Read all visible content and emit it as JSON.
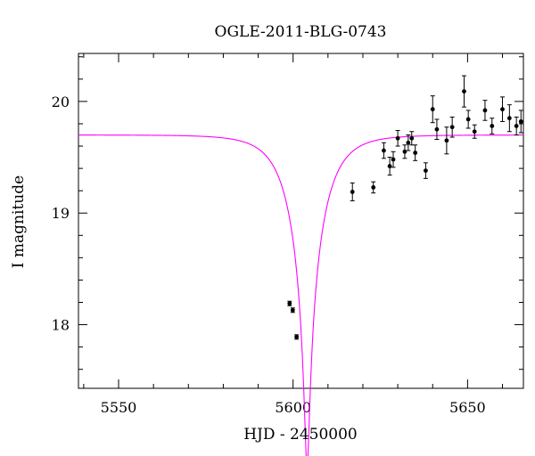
{
  "chart_data": {
    "type": "scatter",
    "title": "OGLE-2011-BLG-0743",
    "xlabel": "HJD - 2450000",
    "ylabel": "I magnitude",
    "xlim": [
      5538.5,
      5666
    ],
    "ylim": [
      20.43,
      17.43
    ],
    "y_inverted": true,
    "grid": false,
    "x_ticks": [
      5550,
      5600,
      5650
    ],
    "y_ticks": [
      18,
      19,
      20
    ],
    "x_minor_step": 10,
    "y_minor_step": 0.2,
    "colors": {
      "points": "#000000",
      "model": "#ff00ff"
    },
    "model": {
      "type": "paczynski",
      "t0": 5604.0,
      "tE": 9.0,
      "u0": 0.065,
      "baseline_mag": 19.7,
      "x_range": [
        5538.5,
        5666
      ]
    },
    "series": [
      {
        "points": [
          {
            "x": 5599.0,
            "y": 18.19,
            "err": 0.02
          },
          {
            "x": 5599.9,
            "y": 18.13,
            "err": 0.02
          },
          {
            "x": 5601.0,
            "y": 17.89,
            "err": 0.02
          },
          {
            "x": 5617.0,
            "y": 19.19,
            "err": 0.08
          },
          {
            "x": 5623.0,
            "y": 19.23,
            "err": 0.05
          },
          {
            "x": 5626.0,
            "y": 19.56,
            "err": 0.07
          },
          {
            "x": 5627.7,
            "y": 19.42,
            "err": 0.08
          },
          {
            "x": 5628.7,
            "y": 19.48,
            "err": 0.07
          },
          {
            "x": 5630.0,
            "y": 19.67,
            "err": 0.07
          },
          {
            "x": 5632.0,
            "y": 19.55,
            "err": 0.06
          },
          {
            "x": 5633.0,
            "y": 19.63,
            "err": 0.07
          },
          {
            "x": 5634.0,
            "y": 19.67,
            "err": 0.06
          },
          {
            "x": 5635.0,
            "y": 19.54,
            "err": 0.07
          },
          {
            "x": 5638.0,
            "y": 19.38,
            "err": 0.07
          },
          {
            "x": 5640.0,
            "y": 19.93,
            "err": 0.12
          },
          {
            "x": 5641.2,
            "y": 19.75,
            "err": 0.09
          },
          {
            "x": 5644.0,
            "y": 19.65,
            "err": 0.12
          },
          {
            "x": 5645.6,
            "y": 19.77,
            "err": 0.09
          },
          {
            "x": 5649.0,
            "y": 20.09,
            "err": 0.14
          },
          {
            "x": 5650.2,
            "y": 19.84,
            "err": 0.08
          },
          {
            "x": 5652.0,
            "y": 19.73,
            "err": 0.06
          },
          {
            "x": 5655.0,
            "y": 19.92,
            "err": 0.09
          },
          {
            "x": 5657.0,
            "y": 19.78,
            "err": 0.07
          },
          {
            "x": 5660.0,
            "y": 19.93,
            "err": 0.11
          },
          {
            "x": 5662.0,
            "y": 19.85,
            "err": 0.12
          },
          {
            "x": 5664.0,
            "y": 19.78,
            "err": 0.08
          },
          {
            "x": 5665.3,
            "y": 19.82,
            "err": 0.1
          }
        ]
      }
    ]
  }
}
